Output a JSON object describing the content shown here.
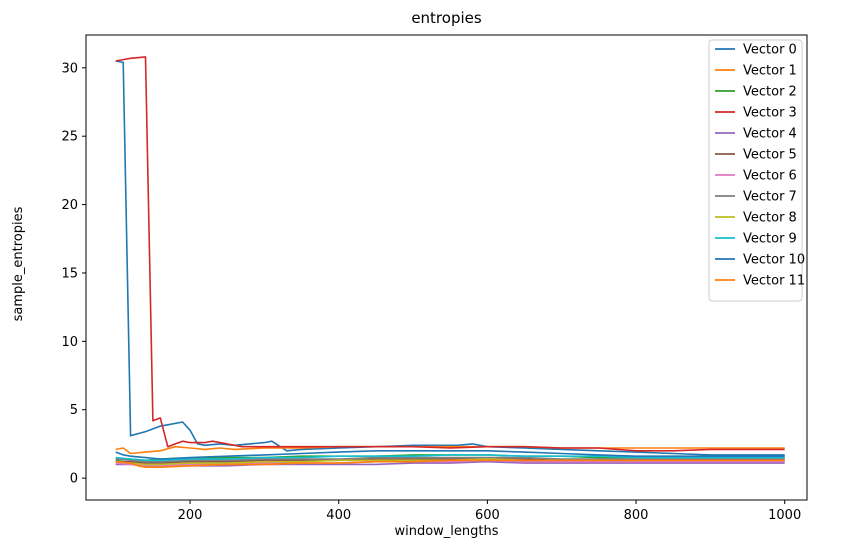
{
  "chart_data": {
    "type": "line",
    "title": "entropies",
    "xlabel": "window_lengths",
    "ylabel": "sample_entropies",
    "xlim": [
      60,
      1030
    ],
    "ylim": [
      -1.6,
      32.4
    ],
    "xticks": [
      200,
      400,
      600,
      800,
      1000
    ],
    "yticks": [
      0,
      5,
      10,
      15,
      20,
      25,
      30
    ],
    "grid": false,
    "legend_position": "top-right",
    "series": [
      {
        "name": "Vector 0",
        "color": "#1f77b4",
        "points": [
          [
            100,
            30.5
          ],
          [
            110,
            30.4
          ],
          [
            120,
            3.1
          ],
          [
            140,
            3.4
          ],
          [
            160,
            3.8
          ],
          [
            170,
            3.9
          ],
          [
            190,
            4.1
          ],
          [
            200,
            3.5
          ],
          [
            210,
            2.5
          ],
          [
            220,
            2.4
          ],
          [
            240,
            2.5
          ],
          [
            260,
            2.4
          ],
          [
            280,
            2.5
          ],
          [
            300,
            2.6
          ],
          [
            310,
            2.7
          ],
          [
            330,
            2.0
          ],
          [
            350,
            2.1
          ],
          [
            400,
            2.2
          ],
          [
            450,
            2.3
          ],
          [
            500,
            2.4
          ],
          [
            560,
            2.4
          ],
          [
            580,
            2.5
          ],
          [
            600,
            2.3
          ],
          [
            650,
            2.2
          ],
          [
            700,
            2.1
          ],
          [
            750,
            2.0
          ],
          [
            800,
            1.9
          ],
          [
            850,
            1.8
          ],
          [
            900,
            1.7
          ],
          [
            950,
            1.7
          ],
          [
            1000,
            1.7
          ]
        ]
      },
      {
        "name": "Vector 1",
        "color": "#ff7f0e",
        "points": [
          [
            100,
            2.1
          ],
          [
            110,
            2.2
          ],
          [
            120,
            1.8
          ],
          [
            140,
            1.9
          ],
          [
            160,
            2.0
          ],
          [
            180,
            2.3
          ],
          [
            200,
            2.2
          ],
          [
            220,
            2.1
          ],
          [
            240,
            2.2
          ],
          [
            260,
            2.1
          ],
          [
            300,
            2.2
          ],
          [
            350,
            2.2
          ],
          [
            400,
            2.3
          ],
          [
            450,
            2.3
          ],
          [
            500,
            2.3
          ],
          [
            550,
            2.3
          ],
          [
            600,
            2.3
          ],
          [
            650,
            2.3
          ],
          [
            700,
            2.2
          ],
          [
            750,
            2.2
          ],
          [
            800,
            2.2
          ],
          [
            850,
            2.2
          ],
          [
            900,
            2.2
          ],
          [
            950,
            2.2
          ],
          [
            1000,
            2.2
          ]
        ]
      },
      {
        "name": "Vector 2",
        "color": "#2ca02c",
        "points": [
          [
            100,
            1.3
          ],
          [
            120,
            1.4
          ],
          [
            140,
            1.3
          ],
          [
            160,
            1.4
          ],
          [
            200,
            1.4
          ],
          [
            250,
            1.5
          ],
          [
            300,
            1.5
          ],
          [
            350,
            1.6
          ],
          [
            400,
            1.6
          ],
          [
            450,
            1.6
          ],
          [
            500,
            1.7
          ],
          [
            550,
            1.7
          ],
          [
            600,
            1.7
          ],
          [
            650,
            1.6
          ],
          [
            700,
            1.6
          ],
          [
            750,
            1.5
          ],
          [
            800,
            1.5
          ],
          [
            850,
            1.5
          ],
          [
            900,
            1.5
          ],
          [
            950,
            1.5
          ],
          [
            1000,
            1.5
          ]
        ]
      },
      {
        "name": "Vector 3",
        "color": "#d62728",
        "points": [
          [
            100,
            30.5
          ],
          [
            110,
            30.6
          ],
          [
            120,
            30.7
          ],
          [
            140,
            30.8
          ],
          [
            150,
            4.2
          ],
          [
            160,
            4.4
          ],
          [
            170,
            2.3
          ],
          [
            180,
            2.5
          ],
          [
            190,
            2.7
          ],
          [
            200,
            2.6
          ],
          [
            220,
            2.6
          ],
          [
            230,
            2.7
          ],
          [
            250,
            2.5
          ],
          [
            270,
            2.3
          ],
          [
            300,
            2.3
          ],
          [
            350,
            2.3
          ],
          [
            400,
            2.3
          ],
          [
            450,
            2.3
          ],
          [
            500,
            2.3
          ],
          [
            550,
            2.2
          ],
          [
            600,
            2.3
          ],
          [
            650,
            2.3
          ],
          [
            700,
            2.2
          ],
          [
            750,
            2.2
          ],
          [
            800,
            2.0
          ],
          [
            850,
            2.0
          ],
          [
            900,
            2.1
          ],
          [
            950,
            2.1
          ],
          [
            1000,
            2.1
          ]
        ]
      },
      {
        "name": "Vector 4",
        "color": "#9467bd",
        "points": [
          [
            100,
            1.0
          ],
          [
            120,
            1.0
          ],
          [
            140,
            0.9
          ],
          [
            160,
            0.9
          ],
          [
            200,
            0.9
          ],
          [
            250,
            0.9
          ],
          [
            300,
            1.0
          ],
          [
            350,
            1.0
          ],
          [
            400,
            1.0
          ],
          [
            450,
            1.0
          ],
          [
            500,
            1.1
          ],
          [
            550,
            1.1
          ],
          [
            600,
            1.2
          ],
          [
            650,
            1.1
          ],
          [
            700,
            1.1
          ],
          [
            750,
            1.1
          ],
          [
            800,
            1.1
          ],
          [
            850,
            1.1
          ],
          [
            900,
            1.1
          ],
          [
            950,
            1.1
          ],
          [
            1000,
            1.1
          ]
        ]
      },
      {
        "name": "Vector 5",
        "color": "#8c564b",
        "points": [
          [
            100,
            1.2
          ],
          [
            120,
            1.2
          ],
          [
            140,
            1.1
          ],
          [
            160,
            1.1
          ],
          [
            200,
            1.2
          ],
          [
            250,
            1.2
          ],
          [
            300,
            1.3
          ],
          [
            350,
            1.3
          ],
          [
            400,
            1.3
          ],
          [
            450,
            1.4
          ],
          [
            500,
            1.4
          ],
          [
            550,
            1.4
          ],
          [
            600,
            1.4
          ],
          [
            650,
            1.4
          ],
          [
            700,
            1.3
          ],
          [
            750,
            1.3
          ],
          [
            800,
            1.3
          ],
          [
            850,
            1.3
          ],
          [
            900,
            1.3
          ],
          [
            950,
            1.3
          ],
          [
            1000,
            1.3
          ]
        ]
      },
      {
        "name": "Vector 6",
        "color": "#e377c2",
        "points": [
          [
            100,
            1.1
          ],
          [
            120,
            1.0
          ],
          [
            140,
            0.9
          ],
          [
            160,
            0.9
          ],
          [
            200,
            1.0
          ],
          [
            250,
            1.0
          ],
          [
            300,
            1.1
          ],
          [
            350,
            1.1
          ],
          [
            400,
            1.1
          ],
          [
            450,
            1.2
          ],
          [
            500,
            1.2
          ],
          [
            550,
            1.2
          ],
          [
            600,
            1.3
          ],
          [
            650,
            1.2
          ],
          [
            700,
            1.2
          ],
          [
            750,
            1.2
          ],
          [
            800,
            1.2
          ],
          [
            850,
            1.2
          ],
          [
            900,
            1.2
          ],
          [
            950,
            1.2
          ],
          [
            1000,
            1.2
          ]
        ]
      },
      {
        "name": "Vector 7",
        "color": "#7f7f7f",
        "points": [
          [
            100,
            1.4
          ],
          [
            120,
            1.3
          ],
          [
            140,
            1.2
          ],
          [
            160,
            1.2
          ],
          [
            200,
            1.3
          ],
          [
            250,
            1.3
          ],
          [
            300,
            1.4
          ],
          [
            350,
            1.4
          ],
          [
            400,
            1.4
          ],
          [
            450,
            1.5
          ],
          [
            500,
            1.5
          ],
          [
            550,
            1.5
          ],
          [
            600,
            1.5
          ],
          [
            650,
            1.5
          ],
          [
            700,
            1.4
          ],
          [
            750,
            1.4
          ],
          [
            800,
            1.4
          ],
          [
            850,
            1.4
          ],
          [
            900,
            1.4
          ],
          [
            950,
            1.4
          ],
          [
            1000,
            1.4
          ]
        ]
      },
      {
        "name": "Vector 8",
        "color": "#bcbd22",
        "points": [
          [
            100,
            1.2
          ],
          [
            120,
            1.1
          ],
          [
            140,
            1.0
          ],
          [
            160,
            1.0
          ],
          [
            200,
            1.1
          ],
          [
            250,
            1.1
          ],
          [
            300,
            1.2
          ],
          [
            350,
            1.2
          ],
          [
            400,
            1.3
          ],
          [
            450,
            1.3
          ],
          [
            500,
            1.3
          ],
          [
            550,
            1.3
          ],
          [
            600,
            1.4
          ],
          [
            650,
            1.3
          ],
          [
            700,
            1.3
          ],
          [
            750,
            1.3
          ],
          [
            800,
            1.3
          ],
          [
            850,
            1.3
          ],
          [
            900,
            1.3
          ],
          [
            950,
            1.3
          ],
          [
            1000,
            1.3
          ]
        ]
      },
      {
        "name": "Vector 9",
        "color": "#17becf",
        "points": [
          [
            100,
            1.5
          ],
          [
            120,
            1.4
          ],
          [
            140,
            1.3
          ],
          [
            160,
            1.3
          ],
          [
            200,
            1.4
          ],
          [
            250,
            1.4
          ],
          [
            300,
            1.5
          ],
          [
            350,
            1.5
          ],
          [
            400,
            1.6
          ],
          [
            450,
            1.6
          ],
          [
            500,
            1.6
          ],
          [
            550,
            1.7
          ],
          [
            600,
            1.7
          ],
          [
            650,
            1.6
          ],
          [
            700,
            1.6
          ],
          [
            750,
            1.6
          ],
          [
            800,
            1.5
          ],
          [
            850,
            1.5
          ],
          [
            900,
            1.5
          ],
          [
            950,
            1.5
          ],
          [
            1000,
            1.5
          ]
        ]
      },
      {
        "name": "Vector 10",
        "color": "#1f77b4",
        "points": [
          [
            100,
            1.9
          ],
          [
            110,
            1.7
          ],
          [
            120,
            1.6
          ],
          [
            140,
            1.5
          ],
          [
            160,
            1.4
          ],
          [
            200,
            1.5
          ],
          [
            250,
            1.6
          ],
          [
            300,
            1.7
          ],
          [
            350,
            1.8
          ],
          [
            400,
            1.9
          ],
          [
            450,
            2.0
          ],
          [
            500,
            2.0
          ],
          [
            550,
            2.0
          ],
          [
            600,
            2.0
          ],
          [
            650,
            1.9
          ],
          [
            700,
            1.8
          ],
          [
            750,
            1.7
          ],
          [
            800,
            1.6
          ],
          [
            850,
            1.6
          ],
          [
            900,
            1.6
          ],
          [
            950,
            1.6
          ],
          [
            1000,
            1.6
          ]
        ]
      },
      {
        "name": "Vector 11",
        "color": "#ff7f0e",
        "points": [
          [
            100,
            1.2
          ],
          [
            120,
            1.1
          ],
          [
            130,
            0.9
          ],
          [
            140,
            0.8
          ],
          [
            160,
            0.8
          ],
          [
            200,
            0.9
          ],
          [
            250,
            1.0
          ],
          [
            300,
            1.0
          ],
          [
            350,
            1.1
          ],
          [
            400,
            1.1
          ],
          [
            450,
            1.2
          ],
          [
            500,
            1.2
          ],
          [
            550,
            1.3
          ],
          [
            600,
            1.3
          ],
          [
            650,
            1.3
          ],
          [
            700,
            1.3
          ],
          [
            750,
            1.3
          ],
          [
            800,
            1.3
          ],
          [
            850,
            1.3
          ],
          [
            900,
            1.3
          ],
          [
            950,
            1.3
          ],
          [
            1000,
            1.3
          ]
        ]
      }
    ]
  }
}
